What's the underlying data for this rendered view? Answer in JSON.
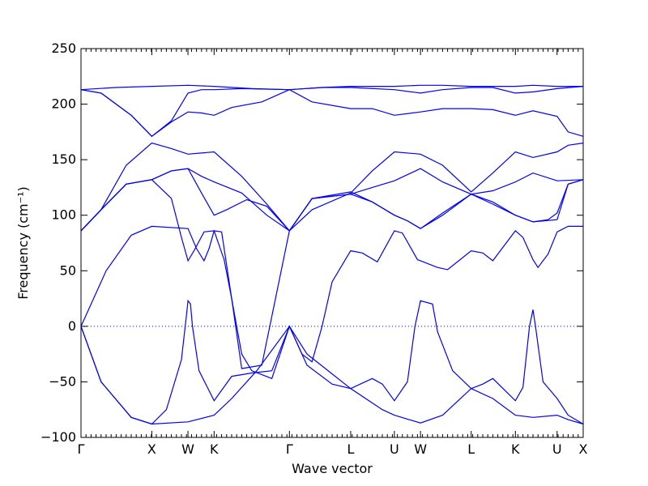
{
  "chart_data": {
    "type": "line",
    "xlabel": "Wave vector",
    "ylabel": "Frequency (cm⁻¹)",
    "ylim": [
      -100,
      250
    ],
    "yticks": [
      -100,
      -50,
      0,
      50,
      100,
      150,
      200,
      250
    ],
    "xlim": [
      0,
      1
    ],
    "xticks": [
      {
        "label": "Γ",
        "x": 0.0
      },
      {
        "label": "X",
        "x": 0.141
      },
      {
        "label": "W",
        "x": 0.213
      },
      {
        "label": "K",
        "x": 0.265
      },
      {
        "label": "Γ",
        "x": 0.415
      },
      {
        "label": "L",
        "x": 0.537
      },
      {
        "label": "U",
        "x": 0.624
      },
      {
        "label": "W",
        "x": 0.676
      },
      {
        "label": "L",
        "x": 0.777
      },
      {
        "label": "K",
        "x": 0.865
      },
      {
        "label": "U",
        "x": 0.948
      },
      {
        "label": "X",
        "x": 1.0
      }
    ],
    "zero_line": {
      "y": 0,
      "style": "dotted"
    },
    "color": "#0000ff",
    "grid": false,
    "series": [
      {
        "points": [
          [
            0,
            213
          ],
          [
            0.07,
            215
          ],
          [
            0.141,
            216
          ],
          [
            0.213,
            217
          ],
          [
            0.265,
            216
          ],
          [
            0.34,
            214
          ],
          [
            0.415,
            213
          ],
          [
            0.48,
            215
          ],
          [
            0.537,
            216
          ],
          [
            0.624,
            216
          ],
          [
            0.676,
            217
          ],
          [
            0.72,
            217
          ],
          [
            0.777,
            216
          ],
          [
            0.82,
            216
          ],
          [
            0.865,
            216
          ],
          [
            0.9,
            217
          ],
          [
            0.948,
            216
          ],
          [
            1.0,
            216
          ]
        ]
      },
      {
        "points": [
          [
            0,
            213
          ],
          [
            0.04,
            210
          ],
          [
            0.1,
            190
          ],
          [
            0.141,
            171
          ],
          [
            0.18,
            185
          ],
          [
            0.213,
            210
          ],
          [
            0.24,
            213
          ],
          [
            0.265,
            213
          ],
          [
            0.32,
            214
          ],
          [
            0.415,
            213
          ],
          [
            0.48,
            215
          ],
          [
            0.537,
            215
          ],
          [
            0.624,
            213
          ],
          [
            0.676,
            210
          ],
          [
            0.72,
            213
          ],
          [
            0.777,
            215
          ],
          [
            0.82,
            215
          ],
          [
            0.865,
            210
          ],
          [
            0.9,
            211
          ],
          [
            0.948,
            214
          ],
          [
            1.0,
            216
          ]
        ]
      },
      {
        "points": [
          [
            0,
            213
          ],
          [
            0.04,
            210
          ],
          [
            0.1,
            190
          ],
          [
            0.141,
            171
          ],
          [
            0.18,
            184
          ],
          [
            0.213,
            193
          ],
          [
            0.24,
            192
          ],
          [
            0.265,
            190
          ],
          [
            0.3,
            197
          ],
          [
            0.36,
            202
          ],
          [
            0.415,
            213
          ],
          [
            0.46,
            202
          ],
          [
            0.537,
            196
          ],
          [
            0.58,
            196
          ],
          [
            0.624,
            190
          ],
          [
            0.676,
            193
          ],
          [
            0.72,
            196
          ],
          [
            0.777,
            196
          ],
          [
            0.82,
            195
          ],
          [
            0.865,
            190
          ],
          [
            0.9,
            194
          ],
          [
            0.948,
            189
          ],
          [
            0.97,
            175
          ],
          [
            1.0,
            171
          ]
        ]
      },
      {
        "points": [
          [
            0,
            86
          ],
          [
            0.04,
            105
          ],
          [
            0.09,
            145
          ],
          [
            0.141,
            165
          ],
          [
            0.18,
            160
          ],
          [
            0.213,
            155
          ],
          [
            0.24,
            156
          ],
          [
            0.265,
            157
          ],
          [
            0.32,
            135
          ],
          [
            0.37,
            110
          ],
          [
            0.415,
            86
          ],
          [
            0.46,
            105
          ],
          [
            0.537,
            120
          ],
          [
            0.58,
            140
          ],
          [
            0.624,
            157
          ],
          [
            0.676,
            155
          ],
          [
            0.72,
            145
          ],
          [
            0.777,
            121
          ],
          [
            0.82,
            138
          ],
          [
            0.865,
            157
          ],
          [
            0.9,
            152
          ],
          [
            0.948,
            157
          ],
          [
            0.97,
            163
          ],
          [
            1.0,
            165
          ]
        ]
      },
      {
        "points": [
          [
            0,
            86
          ],
          [
            0.04,
            105
          ],
          [
            0.09,
            128
          ],
          [
            0.141,
            132
          ],
          [
            0.18,
            140
          ],
          [
            0.213,
            142
          ],
          [
            0.24,
            135
          ],
          [
            0.265,
            130
          ],
          [
            0.32,
            120
          ],
          [
            0.37,
            100
          ],
          [
            0.415,
            86
          ],
          [
            0.46,
            115
          ],
          [
            0.537,
            119
          ],
          [
            0.58,
            125
          ],
          [
            0.624,
            131
          ],
          [
            0.676,
            142
          ],
          [
            0.72,
            130
          ],
          [
            0.777,
            119
          ],
          [
            0.82,
            122
          ],
          [
            0.865,
            130
          ],
          [
            0.9,
            138
          ],
          [
            0.948,
            131
          ],
          [
            1.0,
            132
          ]
        ]
      },
      {
        "points": [
          [
            0,
            86
          ],
          [
            0.04,
            105
          ],
          [
            0.09,
            128
          ],
          [
            0.141,
            132
          ],
          [
            0.18,
            115
          ],
          [
            0.2,
            80
          ],
          [
            0.213,
            59
          ],
          [
            0.225,
            68
          ],
          [
            0.245,
            85
          ],
          [
            0.265,
            86
          ],
          [
            0.285,
            60
          ],
          [
            0.3,
            25
          ],
          [
            0.32,
            -38
          ],
          [
            0.36,
            -35
          ],
          [
            0.415,
            86
          ],
          [
            0.46,
            115
          ],
          [
            0.537,
            121
          ],
          [
            0.58,
            112
          ],
          [
            0.624,
            100
          ],
          [
            0.65,
            95
          ],
          [
            0.676,
            88
          ],
          [
            0.72,
            100
          ],
          [
            0.777,
            119
          ],
          [
            0.82,
            110
          ],
          [
            0.865,
            100
          ],
          [
            0.9,
            94
          ],
          [
            0.93,
            96
          ],
          [
            0.948,
            102
          ],
          [
            0.97,
            128
          ],
          [
            1.0,
            132
          ]
        ]
      },
      {
        "points": [
          [
            0,
            86
          ],
          [
            0.04,
            105
          ],
          [
            0.09,
            128
          ],
          [
            0.141,
            132
          ],
          [
            0.18,
            140
          ],
          [
            0.213,
            142
          ],
          [
            0.24,
            120
          ],
          [
            0.265,
            100
          ],
          [
            0.29,
            105
          ],
          [
            0.33,
            114
          ],
          [
            0.37,
            108
          ],
          [
            0.415,
            86
          ],
          [
            0.46,
            115
          ],
          [
            0.537,
            119
          ],
          [
            0.58,
            112
          ],
          [
            0.624,
            100
          ],
          [
            0.65,
            95
          ],
          [
            0.676,
            88
          ],
          [
            0.72,
            102
          ],
          [
            0.777,
            119
          ],
          [
            0.82,
            112
          ],
          [
            0.865,
            100
          ],
          [
            0.9,
            94
          ],
          [
            0.948,
            96
          ],
          [
            0.97,
            128
          ],
          [
            1.0,
            132
          ]
        ]
      },
      {
        "points": [
          [
            0,
            0
          ],
          [
            0.05,
            50
          ],
          [
            0.1,
            82
          ],
          [
            0.141,
            90
          ],
          [
            0.213,
            88
          ],
          [
            0.23,
            70
          ],
          [
            0.245,
            59
          ],
          [
            0.255,
            70
          ],
          [
            0.265,
            86
          ],
          [
            0.28,
            85
          ],
          [
            0.3,
            25
          ],
          [
            0.32,
            -25
          ],
          [
            0.34,
            -40
          ],
          [
            0.38,
            -47
          ],
          [
            0.415,
            0
          ],
          [
            0.44,
            -25
          ],
          [
            0.46,
            -32
          ],
          [
            0.48,
            0
          ],
          [
            0.5,
            40
          ],
          [
            0.537,
            68
          ],
          [
            0.56,
            66
          ],
          [
            0.59,
            58
          ],
          [
            0.624,
            86
          ],
          [
            0.64,
            84
          ],
          [
            0.67,
            60
          ],
          [
            0.676,
            59
          ],
          [
            0.71,
            53
          ],
          [
            0.73,
            51
          ],
          [
            0.777,
            68
          ],
          [
            0.8,
            66
          ],
          [
            0.82,
            59
          ],
          [
            0.865,
            86
          ],
          [
            0.88,
            80
          ],
          [
            0.9,
            60
          ],
          [
            0.91,
            53
          ],
          [
            0.93,
            65
          ],
          [
            0.948,
            85
          ],
          [
            0.97,
            90
          ],
          [
            1.0,
            90
          ]
        ]
      },
      {
        "points": [
          [
            0,
            0
          ],
          [
            0.04,
            -50
          ],
          [
            0.1,
            -82
          ],
          [
            0.141,
            -88
          ],
          [
            0.17,
            -75
          ],
          [
            0.2,
            -30
          ],
          [
            0.21,
            10
          ],
          [
            0.213,
            23
          ],
          [
            0.218,
            20
          ],
          [
            0.222,
            0
          ],
          [
            0.235,
            -40
          ],
          [
            0.265,
            -67
          ],
          [
            0.3,
            -45
          ],
          [
            0.34,
            -42
          ],
          [
            0.38,
            -40
          ],
          [
            0.415,
            0
          ],
          [
            0.45,
            -25
          ],
          [
            0.537,
            -56
          ],
          [
            0.58,
            -47
          ],
          [
            0.6,
            -52
          ],
          [
            0.624,
            -67
          ],
          [
            0.65,
            -50
          ],
          [
            0.665,
            0
          ],
          [
            0.676,
            23
          ],
          [
            0.7,
            20
          ],
          [
            0.71,
            -5
          ],
          [
            0.74,
            -40
          ],
          [
            0.777,
            -56
          ],
          [
            0.8,
            -52
          ],
          [
            0.82,
            -47
          ],
          [
            0.865,
            -67
          ],
          [
            0.88,
            -55
          ],
          [
            0.893,
            0
          ],
          [
            0.9,
            15
          ],
          [
            0.905,
            0
          ],
          [
            0.92,
            -50
          ],
          [
            0.948,
            -65
          ],
          [
            0.97,
            -80
          ],
          [
            1.0,
            -88
          ]
        ]
      },
      {
        "points": [
          [
            0,
            0
          ],
          [
            0.04,
            -50
          ],
          [
            0.1,
            -82
          ],
          [
            0.141,
            -88
          ],
          [
            0.213,
            -86
          ],
          [
            0.265,
            -80
          ],
          [
            0.3,
            -65
          ],
          [
            0.35,
            -40
          ],
          [
            0.415,
            0
          ],
          [
            0.45,
            -35
          ],
          [
            0.5,
            -52
          ],
          [
            0.537,
            -56
          ],
          [
            0.6,
            -75
          ],
          [
            0.624,
            -80
          ],
          [
            0.676,
            -87
          ],
          [
            0.72,
            -80
          ],
          [
            0.777,
            -56
          ],
          [
            0.82,
            -65
          ],
          [
            0.865,
            -80
          ],
          [
            0.9,
            -82
          ],
          [
            0.948,
            -80
          ],
          [
            0.97,
            -84
          ],
          [
            1.0,
            -88
          ]
        ]
      }
    ]
  }
}
